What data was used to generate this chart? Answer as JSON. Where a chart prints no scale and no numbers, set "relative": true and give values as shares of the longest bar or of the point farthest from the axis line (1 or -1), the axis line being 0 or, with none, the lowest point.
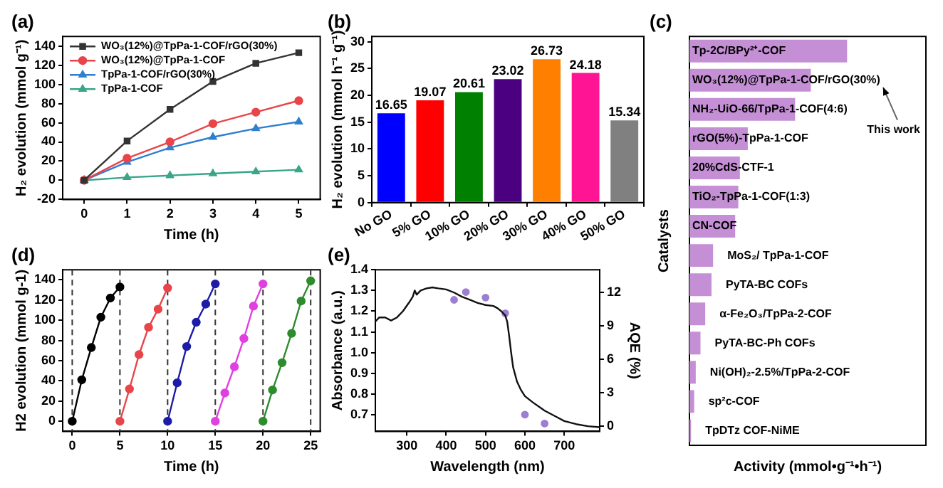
{
  "chart_data": [
    {
      "type": "line",
      "title": "(a)",
      "xlabel": "Time (h)",
      "ylabel": "H₂ evolution (mmol g⁻¹)",
      "x": [
        0,
        1,
        2,
        3,
        4,
        5
      ],
      "xlim": [
        -0.5,
        5.5
      ],
      "xticks": [
        0,
        1,
        2,
        3,
        4,
        5
      ],
      "ylim": [
        -20,
        150
      ],
      "yticks": [
        -20,
        0,
        20,
        40,
        60,
        80,
        100,
        120,
        140
      ],
      "legend": "top left",
      "series": [
        {
          "name": "WO₃(12%)@TpPa-1-COF/rGO(30%)",
          "color": "#333333",
          "marker": "square",
          "values": [
            0,
            41,
            74,
            103,
            122,
            133
          ]
        },
        {
          "name": "WO₃(12%)@TpPa-1-COF",
          "color": "#e8454a",
          "marker": "circle",
          "values": [
            0,
            23,
            40,
            59,
            71,
            83
          ]
        },
        {
          "name": "TpPa-1-COF/rGO(30%)",
          "color": "#2f7fd0",
          "marker": "triangle",
          "values": [
            0,
            19,
            34,
            45,
            54,
            61
          ]
        },
        {
          "name": "TpPa-1-COF",
          "color": "#3aa58a",
          "marker": "triangle",
          "values": [
            0,
            3,
            5,
            7,
            9,
            11
          ]
        }
      ]
    },
    {
      "type": "bar",
      "title": "(b)",
      "ylabel": "H₂ evolution (mmol h⁻¹ g⁻¹)",
      "categories": [
        "No GO",
        "5% GO",
        "10% GO",
        "20% GO",
        "30% GO",
        "40% GO",
        "50% GO"
      ],
      "values": [
        16.65,
        19.07,
        20.61,
        23.02,
        26.73,
        24.18,
        15.34
      ],
      "colors": [
        "#0000ff",
        "#ff0000",
        "#008000",
        "#4b0082",
        "#ff8000",
        "#ff1493",
        "#808080"
      ],
      "ylim": [
        0,
        31
      ],
      "yticks": [
        0,
        5,
        10,
        15,
        20,
        25,
        30
      ],
      "data_labels": true
    },
    {
      "type": "bar",
      "orientation": "horizontal",
      "relative": true,
      "title": "(c)",
      "xlabel": "Activity (mmol•g⁻¹•h⁻¹)",
      "ylabel": "Catalysts",
      "color": "#c58fd6",
      "categories": [
        "Tp-2C/BPy²⁺-COF",
        "WO₃(12%)@TpPa-1-COF/rGO(30%)",
        "NH₂-UiO-66/TpPa-1-COF(4:6)",
        "rGO(5%)-TpPa-1-COF",
        "20%CdS-CTF-1",
        "TiO₂-TpPa-1-COF(1:3)",
        "CN-COF",
        "MoS₂/ TpPa-1-COF",
        "PyTA-BC COFs",
        "α-Fe₂O₃/TpPa-2-COF",
        "PyTA-BC-Ph COFs",
        "Ni(OH)₂-2.5%/TpPa-2-COF",
        "sp²c-COF",
        "TpDTz COF-NiME"
      ],
      "values": [
        1,
        0.77,
        0.67,
        0.37,
        0.32,
        0.31,
        0.29,
        0.15,
        0.14,
        0.1,
        0.07,
        0.04,
        0.03,
        0.01
      ],
      "annotations": [
        "This work"
      ]
    },
    {
      "type": "line",
      "title": "(d)",
      "xlabel": "Time (h)",
      "ylabel": "H2 evolution (mmol g-1)",
      "xlim": [
        -1,
        26
      ],
      "xticks": [
        0,
        5,
        10,
        15,
        20,
        25
      ],
      "ylim": [
        -10,
        150
      ],
      "yticks": [
        0,
        20,
        40,
        60,
        80,
        100,
        120,
        140
      ],
      "ref_lines": [
        {
          "axis": "x",
          "value": 0,
          "line_style": "dashed",
          "color": "#333333"
        },
        {
          "axis": "x",
          "value": 5,
          "line_style": "dashed",
          "color": "#333333"
        },
        {
          "axis": "x",
          "value": 10,
          "line_style": "dashed",
          "color": "#333333"
        },
        {
          "axis": "x",
          "value": 15,
          "line_style": "dashed",
          "color": "#333333"
        },
        {
          "axis": "x",
          "value": 20,
          "line_style": "dashed",
          "color": "#333333"
        },
        {
          "axis": "x",
          "value": 25,
          "line_style": "dashed",
          "color": "#333333"
        }
      ],
      "series": [
        {
          "color": "#000000",
          "marker": "circle",
          "x": [
            0,
            1,
            2,
            3,
            4,
            5
          ],
          "values": [
            0,
            41,
            73,
            103,
            122,
            133
          ]
        },
        {
          "color": "#e8454a",
          "marker": "circle",
          "x": [
            5,
            6,
            7,
            8,
            9,
            10
          ],
          "values": [
            0,
            32,
            66,
            93,
            111,
            132
          ]
        },
        {
          "color": "#1c1ca8",
          "marker": "circle",
          "x": [
            10,
            11,
            12,
            13,
            14,
            15
          ],
          "values": [
            0,
            38,
            74,
            98,
            116,
            136
          ]
        },
        {
          "color": "#e040e0",
          "marker": "circle",
          "x": [
            15,
            16,
            17,
            18,
            19,
            20
          ],
          "values": [
            0,
            28,
            54,
            82,
            114,
            136
          ]
        },
        {
          "color": "#2e8b2e",
          "marker": "circle",
          "x": [
            20,
            21,
            22,
            23,
            24,
            25
          ],
          "values": [
            0,
            31,
            58,
            87,
            119,
            139
          ]
        }
      ]
    },
    {
      "type": "line",
      "title": "(e)",
      "xlabel": "Wavelength (nm)",
      "ylabel": "Absorbance (a.u.)",
      "y2label": "AQE (%)",
      "xlim": [
        220,
        790
      ],
      "xticks": [
        300,
        400,
        500,
        600,
        700
      ],
      "ylim": [
        0.62,
        1.4
      ],
      "yticks": [
        0.7,
        0.8,
        0.9,
        {
          "value": 1,
          "label": "1.0"
        },
        1.1,
        1.2,
        1.3,
        1.4
      ],
      "y2lim": [
        -0.5,
        14
      ],
      "y2ticks": [
        0,
        3,
        6,
        9,
        12
      ],
      "series": [
        {
          "color": "#111111",
          "marker": "none",
          "x": [
            220,
            230,
            245,
            260,
            275,
            290,
            305,
            315,
            320,
            325,
            335,
            350,
            365,
            380,
            400,
            420,
            440,
            460,
            480,
            500,
            520,
            530,
            540,
            550,
            555,
            560,
            565,
            570,
            580,
            590,
            600,
            620,
            650,
            680,
            700,
            730,
            760,
            790
          ],
          "values": [
            1.15,
            1.17,
            1.17,
            1.155,
            1.17,
            1.2,
            1.24,
            1.27,
            1.3,
            1.28,
            1.3,
            1.31,
            1.315,
            1.31,
            1.305,
            1.29,
            1.27,
            1.255,
            1.24,
            1.23,
            1.225,
            1.215,
            1.2,
            1.18,
            1.15,
            1.08,
            1,
            0.93,
            0.86,
            0.82,
            0.79,
            0.76,
            0.72,
            0.69,
            0.67,
            0.655,
            0.645,
            0.64
          ]
        },
        {
          "type": "scatter",
          "axis": "y2",
          "color": "#9c7fd0",
          "marker": "circle",
          "x": [
            420,
            450,
            500,
            550,
            600,
            650
          ],
          "values": [
            11.3,
            12,
            11.5,
            10.1,
            1,
            0.2
          ]
        }
      ]
    }
  ]
}
